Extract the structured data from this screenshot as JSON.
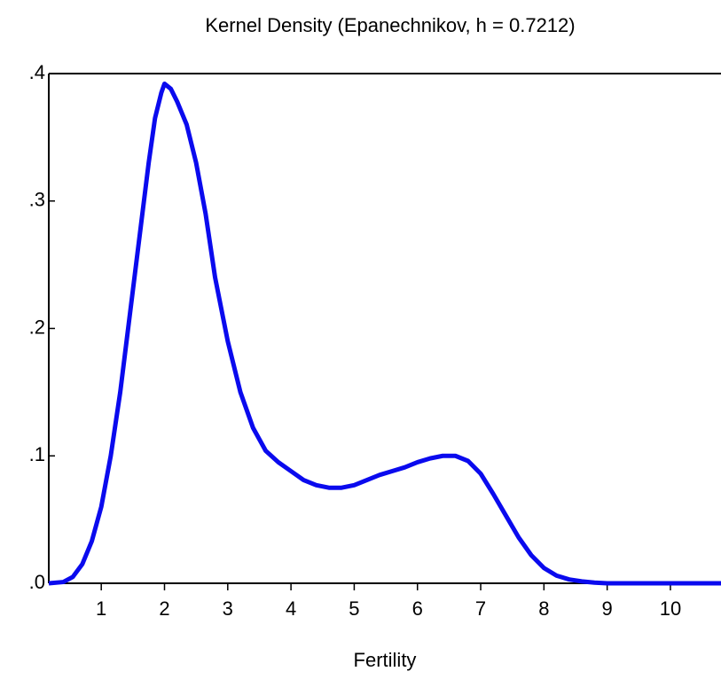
{
  "chart_data": {
    "type": "line",
    "title": "Kernel Density (Epanechnikov, h =  0.7212)",
    "xlabel": "Fertility",
    "x": [
      0.17,
      0.4,
      0.55,
      0.7,
      0.85,
      1.0,
      1.15,
      1.3,
      1.45,
      1.6,
      1.75,
      1.85,
      1.95,
      2.0,
      2.1,
      2.2,
      2.35,
      2.5,
      2.65,
      2.8,
      3.0,
      3.2,
      3.4,
      3.6,
      3.8,
      4.0,
      4.2,
      4.4,
      4.6,
      4.8,
      5.0,
      5.2,
      5.4,
      5.6,
      5.8,
      6.0,
      6.2,
      6.4,
      6.6,
      6.8,
      7.0,
      7.2,
      7.4,
      7.6,
      7.8,
      8.0,
      8.2,
      8.4,
      8.6,
      8.8,
      9.0,
      10.0,
      10.8
    ],
    "series": [
      {
        "name": "Fertility",
        "color": "#0a0aee",
        "values": [
          0.0,
          0.001,
          0.005,
          0.015,
          0.033,
          0.06,
          0.1,
          0.15,
          0.21,
          0.27,
          0.33,
          0.365,
          0.385,
          0.392,
          0.388,
          0.378,
          0.36,
          0.33,
          0.29,
          0.24,
          0.19,
          0.15,
          0.122,
          0.104,
          0.095,
          0.088,
          0.081,
          0.077,
          0.075,
          0.075,
          0.077,
          0.081,
          0.085,
          0.088,
          0.091,
          0.095,
          0.098,
          0.1,
          0.1,
          0.096,
          0.086,
          0.07,
          0.053,
          0.036,
          0.022,
          0.012,
          0.006,
          0.003,
          0.0015,
          0.0005,
          0.0,
          0.0,
          0.0
        ]
      }
    ],
    "xlim": [
      0.17,
      10.8
    ],
    "xticks": [
      1,
      2,
      3,
      4,
      5,
      6,
      7,
      8,
      9,
      10
    ],
    "ylim": [
      0,
      0.4
    ],
    "yticks": [
      {
        "value": 0,
        "label": ".0"
      },
      {
        "value": 0.1,
        "label": ".1"
      },
      {
        "value": 0.2,
        "label": ".2"
      },
      {
        "value": 0.3,
        "label": ".3"
      },
      {
        "value": 0.4,
        "label": ".4"
      }
    ]
  }
}
